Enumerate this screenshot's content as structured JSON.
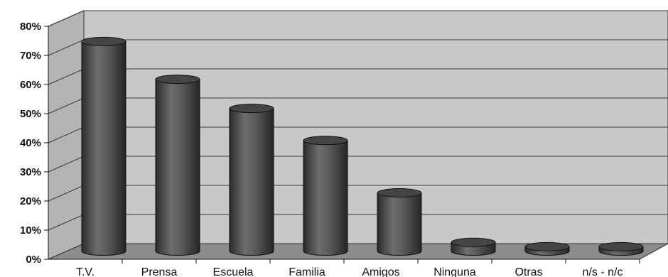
{
  "chart_data": {
    "type": "bar",
    "style": "3d-cylinder",
    "title": "",
    "xlabel": "",
    "ylabel": "",
    "categories": [
      "T.V.",
      "Prensa",
      "Escuela",
      "Familia",
      "Amigos",
      "Ninguna",
      "Otras",
      "n/s - n/c"
    ],
    "values": [
      72,
      59,
      49,
      38,
      20,
      3,
      1.5,
      1.5
    ],
    "ylim": [
      0,
      80
    ],
    "yticks": [
      "0%",
      "10%",
      "20%",
      "30%",
      "40%",
      "50%",
      "60%",
      "70%",
      "80%"
    ],
    "grid": true,
    "legend": "none",
    "colors": {
      "back_wall": "#c8c8c8",
      "side_wall": "#b4b4b4",
      "floor": "#8c8c8c",
      "grid": "#3a3a3a",
      "bar_dark": "#2e2e2e",
      "bar_light": "#707070"
    }
  }
}
